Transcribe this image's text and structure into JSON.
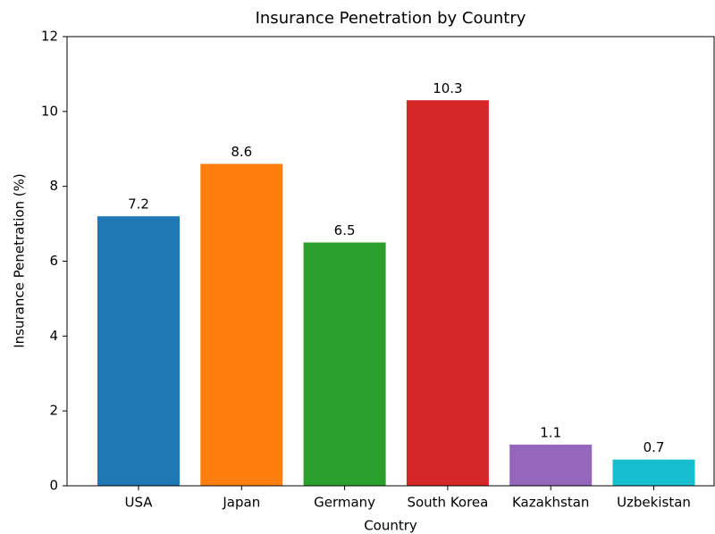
{
  "chart_data": {
    "type": "bar",
    "title": "Insurance Penetration by Country",
    "xlabel": "Country",
    "ylabel": "Insurance Penetration (%)",
    "categories": [
      "USA",
      "Japan",
      "Germany",
      "South Korea",
      "Kazakhstan",
      "Uzbekistan"
    ],
    "values": [
      7.2,
      8.6,
      6.5,
      10.3,
      1.1,
      0.7
    ],
    "colors": [
      "#1f77b4",
      "#ff7f0e",
      "#2ca02c",
      "#d62728",
      "#9467bd",
      "#17becf"
    ],
    "ylim": [
      0,
      12
    ],
    "yticks": [
      0,
      2,
      4,
      6,
      8,
      10,
      12
    ],
    "grid": false
  }
}
